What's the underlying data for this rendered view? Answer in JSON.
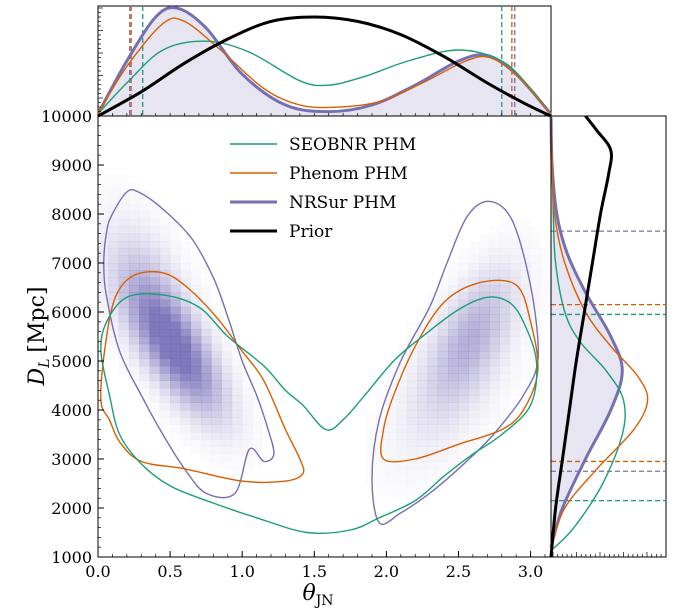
{
  "chart_data": {
    "type": "corner",
    "xlabel": "θ",
    "xlabel_sub": "JN",
    "ylabel": "D",
    "ylabel_sub": "L",
    "ylabel_unit": "[Mpc]",
    "xlim": [
      0,
      3.14159
    ],
    "ylim": [
      1000,
      10000
    ],
    "x_ticks": [
      "0.0",
      "0.5",
      "1.0",
      "1.5",
      "2.0",
      "2.5",
      "3.0"
    ],
    "x_tick_values": [
      0,
      0.5,
      1.0,
      1.5,
      2.0,
      2.5,
      3.0
    ],
    "y_ticks": [
      "1000",
      "2000",
      "3000",
      "4000",
      "5000",
      "6000",
      "7000",
      "8000",
      "9000",
      "10000"
    ],
    "y_tick_values": [
      1000,
      2000,
      3000,
      4000,
      5000,
      6000,
      7000,
      8000,
      9000,
      10000
    ],
    "legend_position": "top-center",
    "series": [
      {
        "name": "SEOBNR PHM",
        "color": "#1a9e77",
        "width": 1.4,
        "fill": false
      },
      {
        "name": "Phenom PHM",
        "color": "#d95f02",
        "width": 1.4,
        "fill": false
      },
      {
        "name": "NRSur PHM",
        "color": "#7570b3",
        "width": 3,
        "fill": true
      },
      {
        "name": "Prior",
        "color": "#000000",
        "width": 3,
        "fill": false
      }
    ],
    "theta_marginal": {
      "SEOBNR PHM": [
        [
          0,
          0.02
        ],
        [
          0.2,
          0.3
        ],
        [
          0.45,
          0.6
        ],
        [
          0.75,
          0.68
        ],
        [
          1.05,
          0.58
        ],
        [
          1.4,
          0.32
        ],
        [
          1.6,
          0.28
        ],
        [
          1.85,
          0.36
        ],
        [
          2.15,
          0.5
        ],
        [
          2.5,
          0.6
        ],
        [
          2.8,
          0.5
        ],
        [
          3.0,
          0.25
        ],
        [
          3.14,
          0.02
        ]
      ],
      "Phenom PHM": [
        [
          0,
          0.02
        ],
        [
          0.2,
          0.45
        ],
        [
          0.45,
          0.84
        ],
        [
          0.6,
          0.86
        ],
        [
          0.85,
          0.6
        ],
        [
          1.15,
          0.25
        ],
        [
          1.4,
          0.1
        ],
        [
          1.65,
          0.08
        ],
        [
          1.95,
          0.13
        ],
        [
          2.25,
          0.3
        ],
        [
          2.55,
          0.5
        ],
        [
          2.72,
          0.53
        ],
        [
          2.92,
          0.35
        ],
        [
          3.14,
          0.02
        ]
      ],
      "NRSur PHM": [
        [
          0,
          0.02
        ],
        [
          0.2,
          0.5
        ],
        [
          0.4,
          0.9
        ],
        [
          0.55,
          0.98
        ],
        [
          0.75,
          0.8
        ],
        [
          1.0,
          0.38
        ],
        [
          1.3,
          0.1
        ],
        [
          1.6,
          0.04
        ],
        [
          1.9,
          0.1
        ],
        [
          2.2,
          0.28
        ],
        [
          2.5,
          0.5
        ],
        [
          2.7,
          0.55
        ],
        [
          2.9,
          0.38
        ],
        [
          3.14,
          0.02
        ]
      ],
      "Prior": [
        [
          0,
          0.0
        ],
        [
          0.3,
          0.22
        ],
        [
          0.6,
          0.48
        ],
        [
          0.9,
          0.7
        ],
        [
          1.2,
          0.86
        ],
        [
          1.5,
          0.9
        ],
        [
          1.8,
          0.86
        ],
        [
          2.1,
          0.74
        ],
        [
          2.4,
          0.54
        ],
        [
          2.7,
          0.3
        ],
        [
          2.95,
          0.12
        ],
        [
          3.14,
          0.0
        ]
      ]
    },
    "theta_credible_lines": {
      "SEOBNR PHM": [
        0.31,
        2.8
      ],
      "Phenom PHM": [
        0.23,
        2.87
      ],
      "NRSur PHM": [
        0.22,
        2.89
      ]
    },
    "distance_marginal": {
      "SEOBNR PHM": [
        [
          1150,
          0.01
        ],
        [
          1600,
          0.2
        ],
        [
          2500,
          0.45
        ],
        [
          3500,
          0.62
        ],
        [
          4200,
          0.63
        ],
        [
          4800,
          0.48
        ],
        [
          5400,
          0.25
        ],
        [
          6000,
          0.12
        ],
        [
          7000,
          0.04
        ],
        [
          8000,
          0.02
        ],
        [
          10000,
          0.0
        ]
      ],
      "Phenom PHM": [
        [
          1200,
          0.0
        ],
        [
          2000,
          0.12
        ],
        [
          2800,
          0.4
        ],
        [
          3600,
          0.72
        ],
        [
          4200,
          0.84
        ],
        [
          4700,
          0.75
        ],
        [
          5300,
          0.52
        ],
        [
          6000,
          0.3
        ],
        [
          7000,
          0.12
        ],
        [
          8000,
          0.03
        ],
        [
          9000,
          0.01
        ],
        [
          10000,
          0.0
        ]
      ],
      "NRSur PHM": [
        [
          1200,
          0.0
        ],
        [
          2000,
          0.1
        ],
        [
          3000,
          0.3
        ],
        [
          4000,
          0.52
        ],
        [
          4800,
          0.62
        ],
        [
          5500,
          0.52
        ],
        [
          6400,
          0.3
        ],
        [
          7200,
          0.14
        ],
        [
          8000,
          0.05
        ],
        [
          9000,
          0.01
        ],
        [
          10000,
          0.0
        ]
      ],
      "Prior": [
        [
          1000,
          0.0
        ],
        [
          2000,
          0.04
        ],
        [
          3000,
          0.1
        ],
        [
          4000,
          0.16
        ],
        [
          5000,
          0.22
        ],
        [
          6000,
          0.29
        ],
        [
          7000,
          0.36
        ],
        [
          8000,
          0.43
        ],
        [
          8800,
          0.5
        ],
        [
          9300,
          0.52
        ],
        [
          9700,
          0.4
        ],
        [
          10000,
          0.3
        ]
      ]
    },
    "distance_credible_lines": {
      "SEOBNR PHM": [
        2150,
        5950
      ],
      "Phenom PHM": [
        2950,
        6150
      ],
      "NRSur PHM": [
        2750,
        7650
      ]
    },
    "contours": {
      "NRSur PHM": [
        [
          [
            0.06,
            7650
          ],
          [
            0.1,
            8000
          ],
          [
            0.2,
            8450
          ],
          [
            0.28,
            8450
          ],
          [
            0.45,
            8100
          ],
          [
            0.65,
            7500
          ],
          [
            0.8,
            6700
          ],
          [
            0.9,
            5900
          ],
          [
            1.0,
            5000
          ],
          [
            1.1,
            4300
          ],
          [
            1.18,
            3600
          ],
          [
            1.22,
            3100
          ],
          [
            1.15,
            2950
          ],
          [
            1.05,
            3200
          ],
          [
            0.95,
            2300
          ],
          [
            0.75,
            2300
          ],
          [
            0.6,
            2800
          ],
          [
            0.45,
            3500
          ],
          [
            0.3,
            4300
          ],
          [
            0.15,
            5200
          ],
          [
            0.06,
            6300
          ],
          [
            0.04,
            7000
          ],
          [
            0.06,
            7650
          ]
        ],
        [
          [
            1.95,
            1700
          ],
          [
            2.1,
            1900
          ],
          [
            2.3,
            2300
          ],
          [
            2.5,
            2800
          ],
          [
            2.68,
            3300
          ],
          [
            2.8,
            3700
          ],
          [
            2.95,
            4300
          ],
          [
            3.05,
            5000
          ],
          [
            3.02,
            6200
          ],
          [
            2.92,
            7500
          ],
          [
            2.82,
            8100
          ],
          [
            2.68,
            8250
          ],
          [
            2.55,
            7900
          ],
          [
            2.42,
            7000
          ],
          [
            2.3,
            6100
          ],
          [
            2.1,
            5000
          ],
          [
            1.95,
            3800
          ],
          [
            1.9,
            2600
          ],
          [
            1.95,
            1700
          ]
        ]
      ],
      "Phenom PHM": [
        [
          [
            0.02,
            4200
          ],
          [
            0.05,
            5300
          ],
          [
            0.12,
            6300
          ],
          [
            0.25,
            6750
          ],
          [
            0.45,
            6800
          ],
          [
            0.62,
            6500
          ],
          [
            0.82,
            5900
          ],
          [
            1.0,
            5200
          ],
          [
            1.15,
            4600
          ],
          [
            1.3,
            3600
          ],
          [
            1.4,
            3000
          ],
          [
            1.42,
            2700
          ],
          [
            1.3,
            2550
          ],
          [
            1.0,
            2550
          ],
          [
            0.6,
            2800
          ],
          [
            0.3,
            2950
          ],
          [
            0.15,
            3350
          ],
          [
            0.08,
            3800
          ],
          [
            0.02,
            4200
          ]
        ],
        [
          [
            1.98,
            3000
          ],
          [
            2.2,
            3000
          ],
          [
            2.5,
            3300
          ],
          [
            2.8,
            3600
          ],
          [
            2.95,
            4000
          ],
          [
            3.05,
            4800
          ],
          [
            3.0,
            5800
          ],
          [
            2.9,
            6550
          ],
          [
            2.65,
            6600
          ],
          [
            2.4,
            6200
          ],
          [
            2.2,
            5300
          ],
          [
            2.05,
            4300
          ],
          [
            1.98,
            3600
          ],
          [
            1.98,
            3000
          ]
        ]
      ],
      "SEOBNR PHM": [
        [
          [
            0.02,
            5200
          ],
          [
            0.06,
            5800
          ],
          [
            0.2,
            6300
          ],
          [
            0.45,
            6350
          ],
          [
            0.7,
            6100
          ],
          [
            0.9,
            5500
          ],
          [
            1.15,
            4900
          ],
          [
            1.3,
            4400
          ],
          [
            1.42,
            4100
          ],
          [
            1.58,
            3600
          ],
          [
            1.7,
            3800
          ],
          [
            1.85,
            4300
          ],
          [
            2.05,
            5000
          ],
          [
            2.25,
            5500
          ],
          [
            2.5,
            6050
          ],
          [
            2.7,
            6300
          ],
          [
            2.85,
            6200
          ],
          [
            2.95,
            5800
          ],
          [
            3.04,
            5000
          ],
          [
            3.0,
            4100
          ],
          [
            2.8,
            3500
          ],
          [
            2.6,
            3100
          ],
          [
            2.4,
            2650
          ],
          [
            2.2,
            2150
          ],
          [
            1.95,
            1800
          ],
          [
            1.75,
            1550
          ],
          [
            1.45,
            1500
          ],
          [
            1.1,
            1800
          ],
          [
            0.8,
            2100
          ],
          [
            0.5,
            2450
          ],
          [
            0.3,
            2900
          ],
          [
            0.15,
            3500
          ],
          [
            0.08,
            4300
          ],
          [
            0.02,
            5200
          ]
        ]
      ]
    }
  }
}
